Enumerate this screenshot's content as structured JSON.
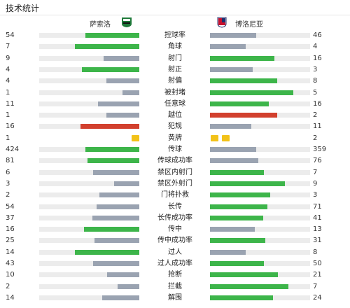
{
  "header": {
    "title": "技术统计"
  },
  "teams": {
    "left": {
      "name": "萨索洛",
      "logo_icon": "sassuolo-crest-icon"
    },
    "right": {
      "name": "博洛尼亚",
      "logo_icon": "bologna-crest-icon"
    }
  },
  "colors": {
    "win": "#3db54a",
    "lose": "#9aa3b1",
    "alert": "#d2402e",
    "card": "#f2c219",
    "track": "#ececec"
  },
  "stats": [
    {
      "label": "控球率",
      "left": "54",
      "right": "46",
      "lf": 0.54,
      "rf": 0.46,
      "lc": "green",
      "rc": "gray"
    },
    {
      "label": "角球",
      "left": "7",
      "right": "4",
      "lf": 0.64,
      "rf": 0.36,
      "lc": "green",
      "rc": "gray"
    },
    {
      "label": "射门",
      "left": "9",
      "right": "16",
      "lf": 0.36,
      "rf": 0.64,
      "lc": "gray",
      "rc": "green"
    },
    {
      "label": "射正",
      "left": "4",
      "right": "3",
      "lf": 0.57,
      "rf": 0.43,
      "lc": "green",
      "rc": "gray"
    },
    {
      "label": "射偏",
      "left": "4",
      "right": "8",
      "lf": 0.33,
      "rf": 0.67,
      "lc": "gray",
      "rc": "green"
    },
    {
      "label": "被封堵",
      "left": "1",
      "right": "5",
      "lf": 0.17,
      "rf": 0.83,
      "lc": "gray",
      "rc": "green"
    },
    {
      "label": "任意球",
      "left": "11",
      "right": "16",
      "lf": 0.41,
      "rf": 0.59,
      "lc": "gray",
      "rc": "green"
    },
    {
      "label": "越位",
      "left": "1",
      "right": "2",
      "lf": 0.33,
      "rf": 0.67,
      "lc": "gray",
      "rc": "red"
    },
    {
      "label": "犯规",
      "left": "16",
      "right": "11",
      "lf": 0.59,
      "rf": 0.41,
      "lc": "red",
      "rc": "gray"
    },
    {
      "label": "黄牌",
      "left": "1",
      "right": "2",
      "cards_left": 1,
      "cards_right": 2
    },
    {
      "label": "传球",
      "left": "424",
      "right": "359",
      "lf": 0.54,
      "rf": 0.46,
      "lc": "green",
      "rc": "gray"
    },
    {
      "label": "传球成功率",
      "left": "81",
      "right": "76",
      "lf": 0.52,
      "rf": 0.48,
      "lc": "green",
      "rc": "gray"
    },
    {
      "label": "禁区内射门",
      "left": "6",
      "right": "7",
      "lf": 0.46,
      "rf": 0.54,
      "lc": "gray",
      "rc": "green"
    },
    {
      "label": "禁区外射门",
      "left": "3",
      "right": "9",
      "lf": 0.25,
      "rf": 0.75,
      "lc": "gray",
      "rc": "green"
    },
    {
      "label": "门将扑救",
      "left": "2",
      "right": "3",
      "lf": 0.4,
      "rf": 0.6,
      "lc": "gray",
      "rc": "green"
    },
    {
      "label": "长传",
      "left": "54",
      "right": "71",
      "lf": 0.43,
      "rf": 0.57,
      "lc": "gray",
      "rc": "green"
    },
    {
      "label": "长传成功率",
      "left": "37",
      "right": "41",
      "lf": 0.47,
      "rf": 0.53,
      "lc": "gray",
      "rc": "green"
    },
    {
      "label": "传中",
      "left": "16",
      "right": "13",
      "lf": 0.55,
      "rf": 0.45,
      "lc": "green",
      "rc": "gray"
    },
    {
      "label": "传中成功率",
      "left": "25",
      "right": "31",
      "lf": 0.45,
      "rf": 0.55,
      "lc": "gray",
      "rc": "green"
    },
    {
      "label": "过人",
      "left": "14",
      "right": "8",
      "lf": 0.64,
      "rf": 0.36,
      "lc": "green",
      "rc": "gray"
    },
    {
      "label": "过人成功率",
      "left": "43",
      "right": "50",
      "lf": 0.46,
      "rf": 0.54,
      "lc": "gray",
      "rc": "green"
    },
    {
      "label": "抢断",
      "left": "10",
      "right": "21",
      "lf": 0.32,
      "rf": 0.68,
      "lc": "gray",
      "rc": "green"
    },
    {
      "label": "拦截",
      "left": "2",
      "right": "7",
      "lf": 0.22,
      "rf": 0.78,
      "lc": "gray",
      "rc": "green"
    },
    {
      "label": "解围",
      "left": "14",
      "right": "24",
      "lf": 0.37,
      "rf": 0.63,
      "lc": "gray",
      "rc": "green"
    }
  ]
}
